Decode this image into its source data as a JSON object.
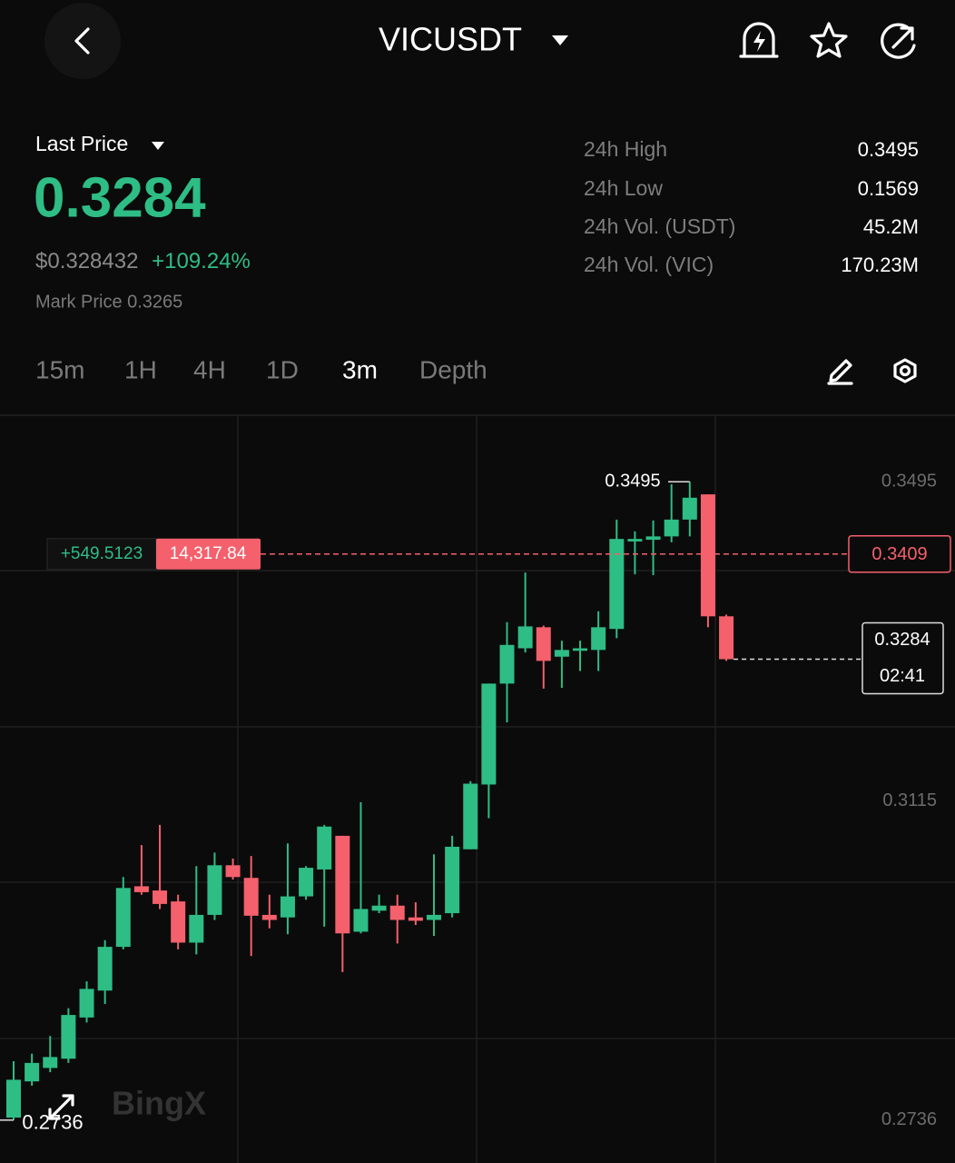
{
  "header": {
    "symbol": "VICUSDT"
  },
  "price": {
    "label": "Last Price",
    "last": "0.3284",
    "usd": "$0.328432",
    "change": "+109.24%",
    "mark": "Mark Price 0.3265"
  },
  "stats": [
    {
      "label": "24h High",
      "value": "0.3495"
    },
    {
      "label": "24h Low",
      "value": "0.1569"
    },
    {
      "label": "24h Vol. (USDT)",
      "value": "45.2M"
    },
    {
      "label": "24h Vol. (VIC)",
      "value": "170.23M"
    }
  ],
  "timeframes": [
    "15m",
    "1H",
    "4H",
    "1D",
    "3m",
    "Depth"
  ],
  "watermark": "BingX",
  "chart_data": {
    "type": "candlestick",
    "up_color": "#2ebd85",
    "down_color": "#f4606c",
    "open": [
      0.2739,
      0.2782,
      0.2798,
      0.2809,
      0.2858,
      0.289,
      0.2942,
      0.3014,
      0.3009,
      0.2996,
      0.2947,
      0.298,
      0.3039,
      0.3024,
      0.298,
      0.2977,
      0.3002,
      0.3034,
      0.3074,
      0.296,
      0.2985,
      0.2991,
      0.2977,
      0.2974,
      0.2982,
      0.3058,
      0.3135,
      0.3255,
      0.3297,
      0.3322,
      0.3287,
      0.3294,
      0.3295,
      0.332,
      0.3424,
      0.3426,
      0.343,
      0.345,
      0.348,
      0.3335
    ],
    "high": [
      0.2806,
      0.2815,
      0.2836,
      0.2869,
      0.2901,
      0.295,
      0.3025,
      0.3063,
      0.3087,
      0.3004,
      0.3038,
      0.3054,
      0.3047,
      0.305,
      0.3004,
      0.3065,
      0.3038,
      0.3087,
      0.3074,
      0.3114,
      0.3004,
      0.3004,
      0.2995,
      0.3052,
      0.3074,
      0.3139,
      0.3255,
      0.3328,
      0.3387,
      0.3324,
      0.3306,
      0.3306,
      0.3341,
      0.345,
      0.3436,
      0.3449,
      0.3492,
      0.3495,
      0.348,
      0.3337
    ],
    "low": [
      0.2736,
      0.2777,
      0.2793,
      0.2804,
      0.2852,
      0.2874,
      0.2939,
      0.3004,
      0.2987,
      0.2939,
      0.2933,
      0.2974,
      0.3022,
      0.2931,
      0.2964,
      0.2957,
      0.2998,
      0.2966,
      0.2912,
      0.2958,
      0.2982,
      0.2946,
      0.2968,
      0.2955,
      0.2977,
      0.3058,
      0.3095,
      0.3209,
      0.3292,
      0.3249,
      0.325,
      0.327,
      0.327,
      0.3309,
      0.3385,
      0.3384,
      0.3423,
      0.343,
      0.3322,
      0.3282
    ],
    "close": [
      0.2784,
      0.2804,
      0.2811,
      0.2861,
      0.2892,
      0.2942,
      0.3012,
      0.3007,
      0.2993,
      0.2947,
      0.298,
      0.3039,
      0.3025,
      0.2979,
      0.2974,
      0.3002,
      0.3036,
      0.3085,
      0.2958,
      0.2987,
      0.2991,
      0.2974,
      0.2973,
      0.298,
      0.3061,
      0.3136,
      0.3255,
      0.3301,
      0.3323,
      0.3282,
      0.3295,
      0.3297,
      0.3322,
      0.3427,
      0.3427,
      0.343,
      0.345,
      0.3476,
      0.3335,
      0.3284
    ],
    "ylim": [
      0.2685,
      0.3573
    ],
    "yticks": [
      0.3495,
      0.3115,
      0.2736
    ],
    "high_marker": 0.3495,
    "low_marker": 0.2736,
    "last_price": 0.3284,
    "countdown": "02:41",
    "order_line": {
      "price": 0.3409,
      "pnl": "+549.5123",
      "amount": "14,317.84"
    }
  }
}
